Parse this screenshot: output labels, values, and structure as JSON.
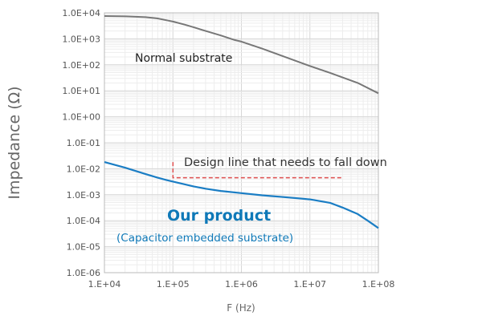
{
  "chart_data": {
    "type": "line",
    "title": "",
    "xlabel": "F (Hz)",
    "ylabel": "Impedance (Ω)",
    "x_scale": "log",
    "y_scale": "log",
    "xlim": [
      10000,
      100000000
    ],
    "ylim": [
      1e-06,
      10000
    ],
    "grid": true,
    "x_ticks": [
      {
        "value": 10000,
        "label": "1.E+04"
      },
      {
        "value": 100000,
        "label": "1.E+05"
      },
      {
        "value": 1000000,
        "label": "1.E+06"
      },
      {
        "value": 10000000,
        "label": "1.E+07"
      },
      {
        "value": 100000000,
        "label": "1.E+08"
      }
    ],
    "y_ticks": [
      {
        "value": 10000,
        "label": "1.0E+04"
      },
      {
        "value": 1000,
        "label": "1.0E+03"
      },
      {
        "value": 100,
        "label": "1.0E+02"
      },
      {
        "value": 10,
        "label": "1.0E+01"
      },
      {
        "value": 1,
        "label": "1.0E+00"
      },
      {
        "value": 0.1,
        "label": "1.0E-01"
      },
      {
        "value": 0.01,
        "label": "1.0E-02"
      },
      {
        "value": 0.001,
        "label": "1.0E-03"
      },
      {
        "value": 0.0001,
        "label": "1.0E-04"
      },
      {
        "value": 1e-05,
        "label": "1.0E-05"
      },
      {
        "value": 1e-06,
        "label": "1.0E-06"
      }
    ],
    "series": [
      {
        "name": "Normal substrate",
        "color": "#777777",
        "x": [
          10000,
          20000,
          40000,
          60000,
          80000,
          100000,
          150000,
          200000,
          300000,
          500000,
          800000,
          1000000,
          2000000,
          5000000,
          10000000,
          20000000,
          50000000,
          100000000
        ],
        "y": [
          7500,
          7300,
          6800,
          6100,
          5200,
          4600,
          3500,
          2800,
          2000,
          1350,
          900,
          780,
          420,
          175,
          90,
          48,
          20,
          8
        ]
      },
      {
        "name": "Our product (Capacitor embedded substrate)",
        "color": "#1a7dc4",
        "x": [
          10000,
          20000,
          40000,
          60000,
          80000,
          100000,
          150000,
          200000,
          300000,
          500000,
          1000000,
          2000000,
          5000000,
          10000000,
          20000000,
          30000000,
          50000000,
          70000000,
          85000000,
          100000000
        ],
        "y": [
          0.018,
          0.011,
          0.0062,
          0.0045,
          0.0037,
          0.0032,
          0.0025,
          0.0021,
          0.0017,
          0.0014,
          0.00115,
          0.00095,
          0.00078,
          0.00066,
          0.00048,
          0.00032,
          0.00018,
          0.0001,
          7e-05,
          5.2e-05
        ]
      }
    ],
    "design_line": {
      "color": "#e05050",
      "x": [
        100000,
        100000,
        30000000
      ],
      "y": [
        0.018,
        0.0045,
        0.0045
      ]
    },
    "annotations": [
      {
        "id": "normal",
        "text": "Normal substrate"
      },
      {
        "id": "design",
        "text": "Design line that needs to fall down"
      },
      {
        "id": "product",
        "text": "Our product"
      },
      {
        "id": "product_sub",
        "text": "(Capacitor embedded substrate)"
      }
    ]
  }
}
